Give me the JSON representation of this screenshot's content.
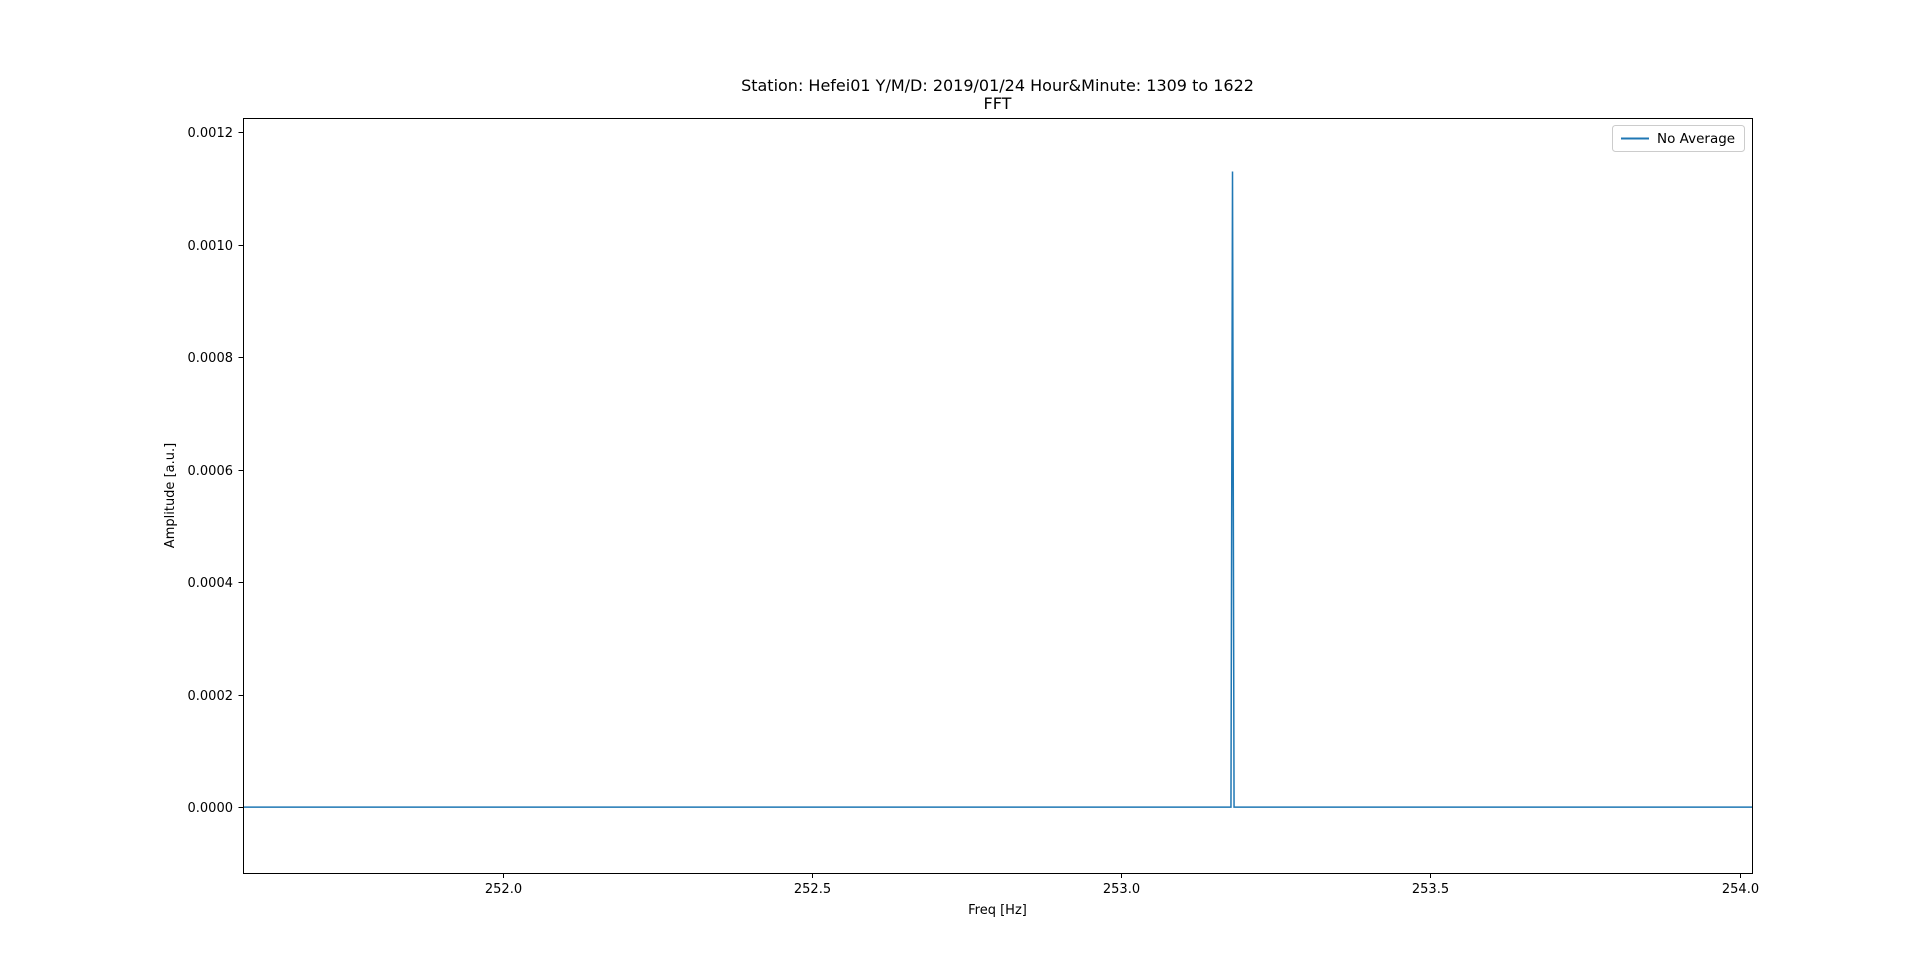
{
  "chart_data": {
    "type": "line",
    "title": "Station: Hefei01 Y/M/D: 2019/01/24 Hour&Minute: 1309 to 1622",
    "subtitle": "FFT",
    "xlabel": "Freq [Hz]",
    "ylabel": "Amplitude [a.u.]",
    "xlim": [
      251.58,
      254.02
    ],
    "ylim": [
      -0.000117,
      0.001225
    ],
    "x_ticks": [
      252.0,
      252.5,
      253.0,
      253.5,
      254.0
    ],
    "x_tick_labels": [
      "252.0",
      "252.5",
      "253.0",
      "253.5",
      "254.0"
    ],
    "y_ticks": [
      0.0,
      0.0002,
      0.0004,
      0.0006,
      0.0008,
      0.001,
      0.0012
    ],
    "y_tick_labels": [
      "0.0000",
      "0.0002",
      "0.0004",
      "0.0006",
      "0.0008",
      "0.0010",
      "0.0012"
    ],
    "grid": false,
    "legend_position": "upper right",
    "series": [
      {
        "name": "No Average",
        "color": "#1f77b4",
        "x": [
          251.58,
          253.1775,
          253.18,
          253.1825,
          254.02
        ],
        "y": [
          0.0,
          0.0,
          0.00113,
          0.0,
          0.0
        ]
      }
    ]
  }
}
